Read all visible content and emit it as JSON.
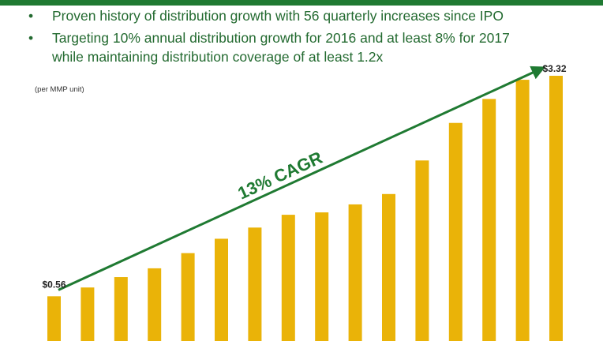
{
  "colors": {
    "accent_green": "#1f7a32",
    "bar_gold": "#eab308",
    "text_green": "#236a30"
  },
  "bullets": [
    {
      "marker": "•",
      "lines": [
        "Proven history of distribution growth with 56 quarterly increases since IPO"
      ]
    },
    {
      "marker": "•",
      "lines": [
        "Targeting 10% annual distribution growth for 2016 and at least 8% for 2017",
        "while maintaining distribution coverage of at least 1.2x"
      ]
    }
  ],
  "chart_data": {
    "type": "bar",
    "title": "",
    "xlabel": "",
    "ylabel": "",
    "unit_note": "(per MMP unit)",
    "ylim": [
      0,
      3.4
    ],
    "values": [
      0.56,
      0.67,
      0.8,
      0.91,
      1.1,
      1.28,
      1.42,
      1.58,
      1.61,
      1.71,
      1.84,
      2.26,
      2.73,
      3.03,
      3.27,
      3.32
    ],
    "data_labels": [
      {
        "index": 0,
        "text": "$0.56"
      },
      {
        "index": 15,
        "text": "$3.32"
      }
    ],
    "annotation": {
      "text": "13% CAGR",
      "type": "arrow",
      "from_index": 0,
      "to_index": 15
    },
    "grid": false,
    "legend": "none"
  }
}
